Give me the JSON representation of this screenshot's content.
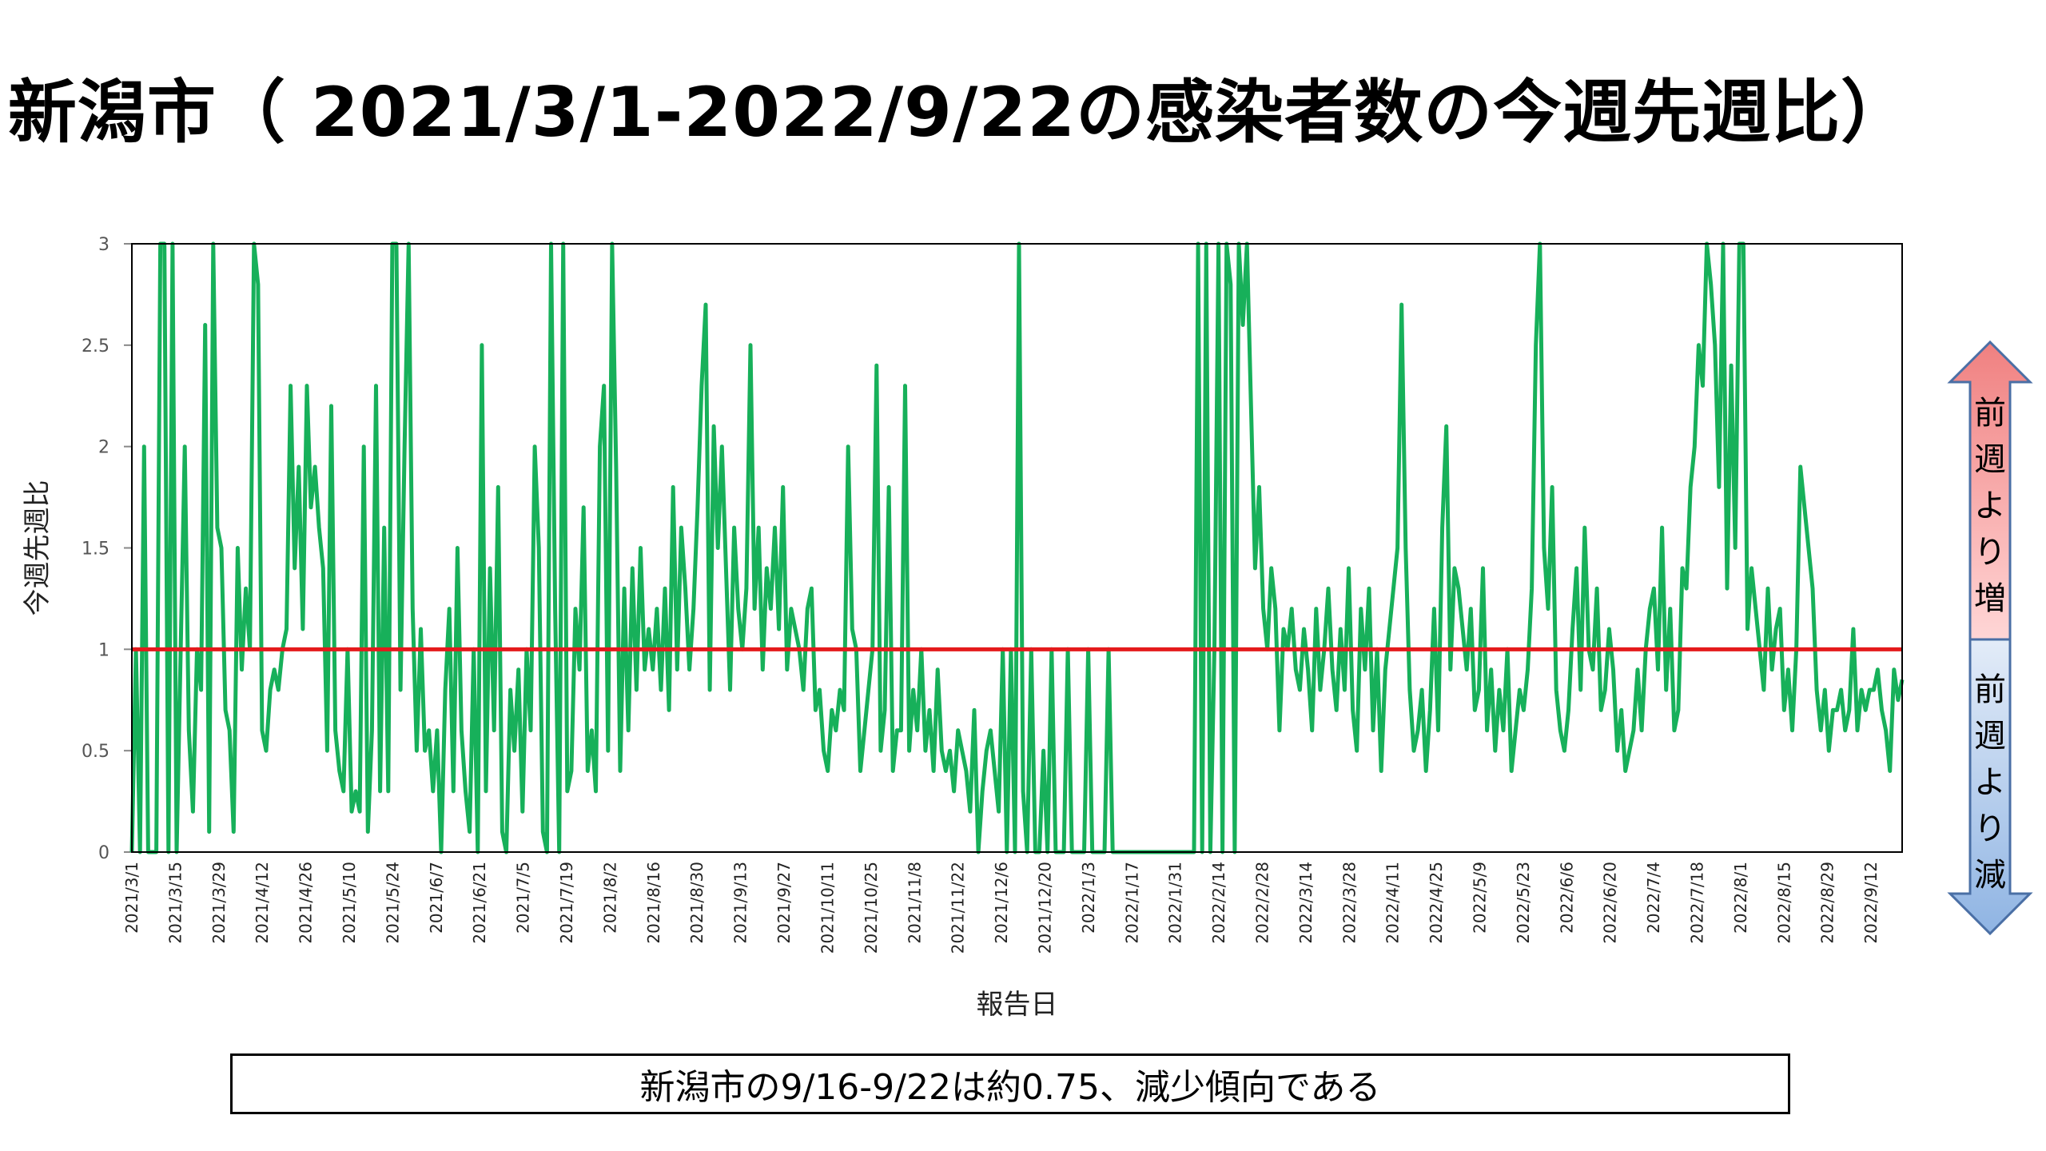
{
  "title": "新潟市（ 2021/3/1-2022/9/22の感染者数の今週先週比）",
  "summary": "新潟市の9/16-9/22は約0.75、減少傾向である",
  "arrow": {
    "up_text": "前週より増",
    "down_text": "前週より減",
    "up_color": "#f08080",
    "down_color": "#8fb4e3"
  },
  "chart_data": {
    "type": "line",
    "title": "",
    "xlabel": "報告日",
    "ylabel": "今週先週比",
    "ylim": [
      0,
      3
    ],
    "yticks": [
      0,
      0.5,
      1,
      1.5,
      2,
      2.5,
      3
    ],
    "x_start": "2021/3/1",
    "x_end": "2022/9/22",
    "x_tick_labels": [
      "2021/3/1",
      "2021/3/15",
      "2021/3/29",
      "2021/4/12",
      "2021/4/26",
      "2021/5/10",
      "2021/5/24",
      "2021/6/7",
      "2021/6/21",
      "2021/7/5",
      "2021/7/19",
      "2021/8/2",
      "2021/8/16",
      "2021/8/30",
      "2021/9/13",
      "2021/9/27",
      "2021/10/11",
      "2021/10/25",
      "2021/11/8",
      "2021/11/22",
      "2021/12/6",
      "2021/12/20",
      "2022/1/3",
      "2022/1/17",
      "2022/1/31",
      "2022/2/14",
      "2022/2/28",
      "2022/3/14",
      "2022/3/28",
      "2022/4/11",
      "2022/4/25",
      "2022/5/9",
      "2022/5/23",
      "2022/6/6",
      "2022/6/20",
      "2022/7/4",
      "2022/7/18",
      "2022/8/1",
      "2022/8/15",
      "2022/8/29",
      "2022/9/12"
    ],
    "reference_line": {
      "y": 1,
      "color": "#e41a1c"
    },
    "line_color": "#17b05a",
    "grid": false,
    "series": [
      {
        "name": "",
        "values": [
          0,
          1,
          0,
          2,
          0,
          0,
          0,
          3,
          3,
          0,
          3,
          0,
          1,
          2,
          0.6,
          0.2,
          1,
          0.8,
          2.6,
          0.1,
          3,
          1.6,
          1.5,
          0.7,
          0.6,
          0.1,
          1.5,
          0.9,
          1.3,
          1,
          3,
          2.8,
          0.6,
          0.5,
          0.8,
          0.9,
          0.8,
          1,
          1.1,
          2.3,
          1.4,
          1.9,
          1.1,
          2.3,
          1.7,
          1.9,
          1.6,
          1.4,
          0.5,
          2.2,
          0.6,
          0.4,
          0.3,
          1,
          0.2,
          0.3,
          0.2,
          2,
          0.1,
          0.6,
          2.3,
          0.3,
          1.6,
          0.3,
          3,
          3,
          0.8,
          2,
          3,
          1.2,
          0.5,
          1.1,
          0.5,
          0.6,
          0.3,
          0.6,
          0,
          0.8,
          1.2,
          0.3,
          1.5,
          0.6,
          0.3,
          0.1,
          1,
          0,
          2.5,
          0.3,
          1.4,
          0.6,
          1.8,
          0.1,
          0,
          0.8,
          0.5,
          0.9,
          0.2,
          1,
          0.6,
          2,
          1.5,
          0.1,
          0,
          3,
          1.2,
          0,
          3,
          0.3,
          0.4,
          1.2,
          0.9,
          1.7,
          0.4,
          0.6,
          0.3,
          2,
          2.3,
          0.5,
          3,
          1.9,
          0.4,
          1.3,
          0.6,
          1.4,
          0.8,
          1.5,
          0.9,
          1.1,
          0.9,
          1.2,
          0.8,
          1.3,
          0.7,
          1.8,
          0.9,
          1.6,
          1.3,
          0.9,
          1.2,
          1.7,
          2.3,
          2.7,
          0.8,
          2.1,
          1.5,
          2,
          1.4,
          0.8,
          1.6,
          1.2,
          1,
          1.3,
          2.5,
          1.2,
          1.6,
          0.9,
          1.4,
          1.2,
          1.6,
          1.1,
          1.8,
          0.9,
          1.2,
          1.1,
          1,
          0.8,
          1.2,
          1.3,
          0.7,
          0.8,
          0.5,
          0.4,
          0.7,
          0.6,
          0.8,
          0.7,
          2,
          1.1,
          1,
          0.4,
          0.6,
          0.8,
          1,
          2.4,
          0.5,
          0.7,
          1.8,
          0.4,
          0.6,
          0.6,
          2.3,
          0.5,
          0.8,
          0.6,
          1,
          0.5,
          0.7,
          0.4,
          0.9,
          0.5,
          0.4,
          0.5,
          0.3,
          0.6,
          0.5,
          0.4,
          0.2,
          0.7,
          0,
          0.3,
          0.5,
          0.6,
          0.4,
          0.2,
          1,
          0,
          1,
          0,
          3,
          0.3,
          0,
          1,
          0,
          0,
          0.5,
          0,
          1,
          0,
          0,
          0,
          1,
          0,
          0,
          0,
          0,
          1,
          0,
          0,
          0,
          0,
          1,
          0,
          0,
          0,
          0,
          0,
          0,
          0,
          0,
          0,
          0,
          0,
          0,
          0,
          0,
          0,
          0,
          0,
          0,
          0,
          0,
          0,
          3,
          0,
          3,
          0,
          1,
          3,
          0,
          3,
          2.8,
          0,
          3,
          2.6,
          3,
          2.2,
          1.4,
          1.8,
          1.2,
          1,
          1.4,
          1.2,
          0.6,
          1.1,
          1,
          1.2,
          0.9,
          0.8,
          1.1,
          0.9,
          0.6,
          1.2,
          0.8,
          1,
          1.3,
          0.9,
          0.7,
          1.1,
          0.8,
          1.4,
          0.7,
          0.5,
          1.2,
          0.9,
          1.3,
          0.6,
          1,
          0.4,
          0.9,
          1.1,
          1.3,
          1.5,
          2.7,
          1.5,
          0.8,
          0.5,
          0.6,
          0.8,
          0.4,
          0.7,
          1.2,
          0.6,
          1.6,
          2.1,
          0.9,
          1.4,
          1.3,
          1.1,
          0.9,
          1.2,
          0.7,
          0.8,
          1.4,
          0.6,
          0.9,
          0.5,
          0.8,
          0.6,
          1,
          0.4,
          0.6,
          0.8,
          0.7,
          0.9,
          1.3,
          2.5,
          3,
          1.5,
          1.2,
          1.8,
          0.8,
          0.6,
          0.5,
          0.7,
          1.1,
          1.4,
          0.8,
          1.6,
          1,
          0.9,
          1.3,
          0.7,
          0.8,
          1.1,
          0.9,
          0.5,
          0.7,
          0.4,
          0.5,
          0.6,
          0.9,
          0.6,
          1,
          1.2,
          1.3,
          0.9,
          1.6,
          0.8,
          1.2,
          0.6,
          0.7,
          1.4,
          1.3,
          1.8,
          2,
          2.5,
          2.3,
          3,
          2.8,
          2.5,
          1.8,
          3,
          1.3,
          2.4,
          1.5,
          3,
          3,
          1.1,
          1.4,
          1.2,
          1,
          0.8,
          1.3,
          0.9,
          1.1,
          1.2,
          0.7,
          0.9,
          0.6,
          1,
          1.9,
          1.7,
          1.5,
          1.3,
          0.8,
          0.6,
          0.8,
          0.5,
          0.7,
          0.7,
          0.8,
          0.6,
          0.7,
          1.1,
          0.6,
          0.8,
          0.7,
          0.8,
          0.8,
          0.9,
          0.7,
          0.6,
          0.4,
          0.9,
          0.75,
          0.85
        ]
      }
    ]
  }
}
